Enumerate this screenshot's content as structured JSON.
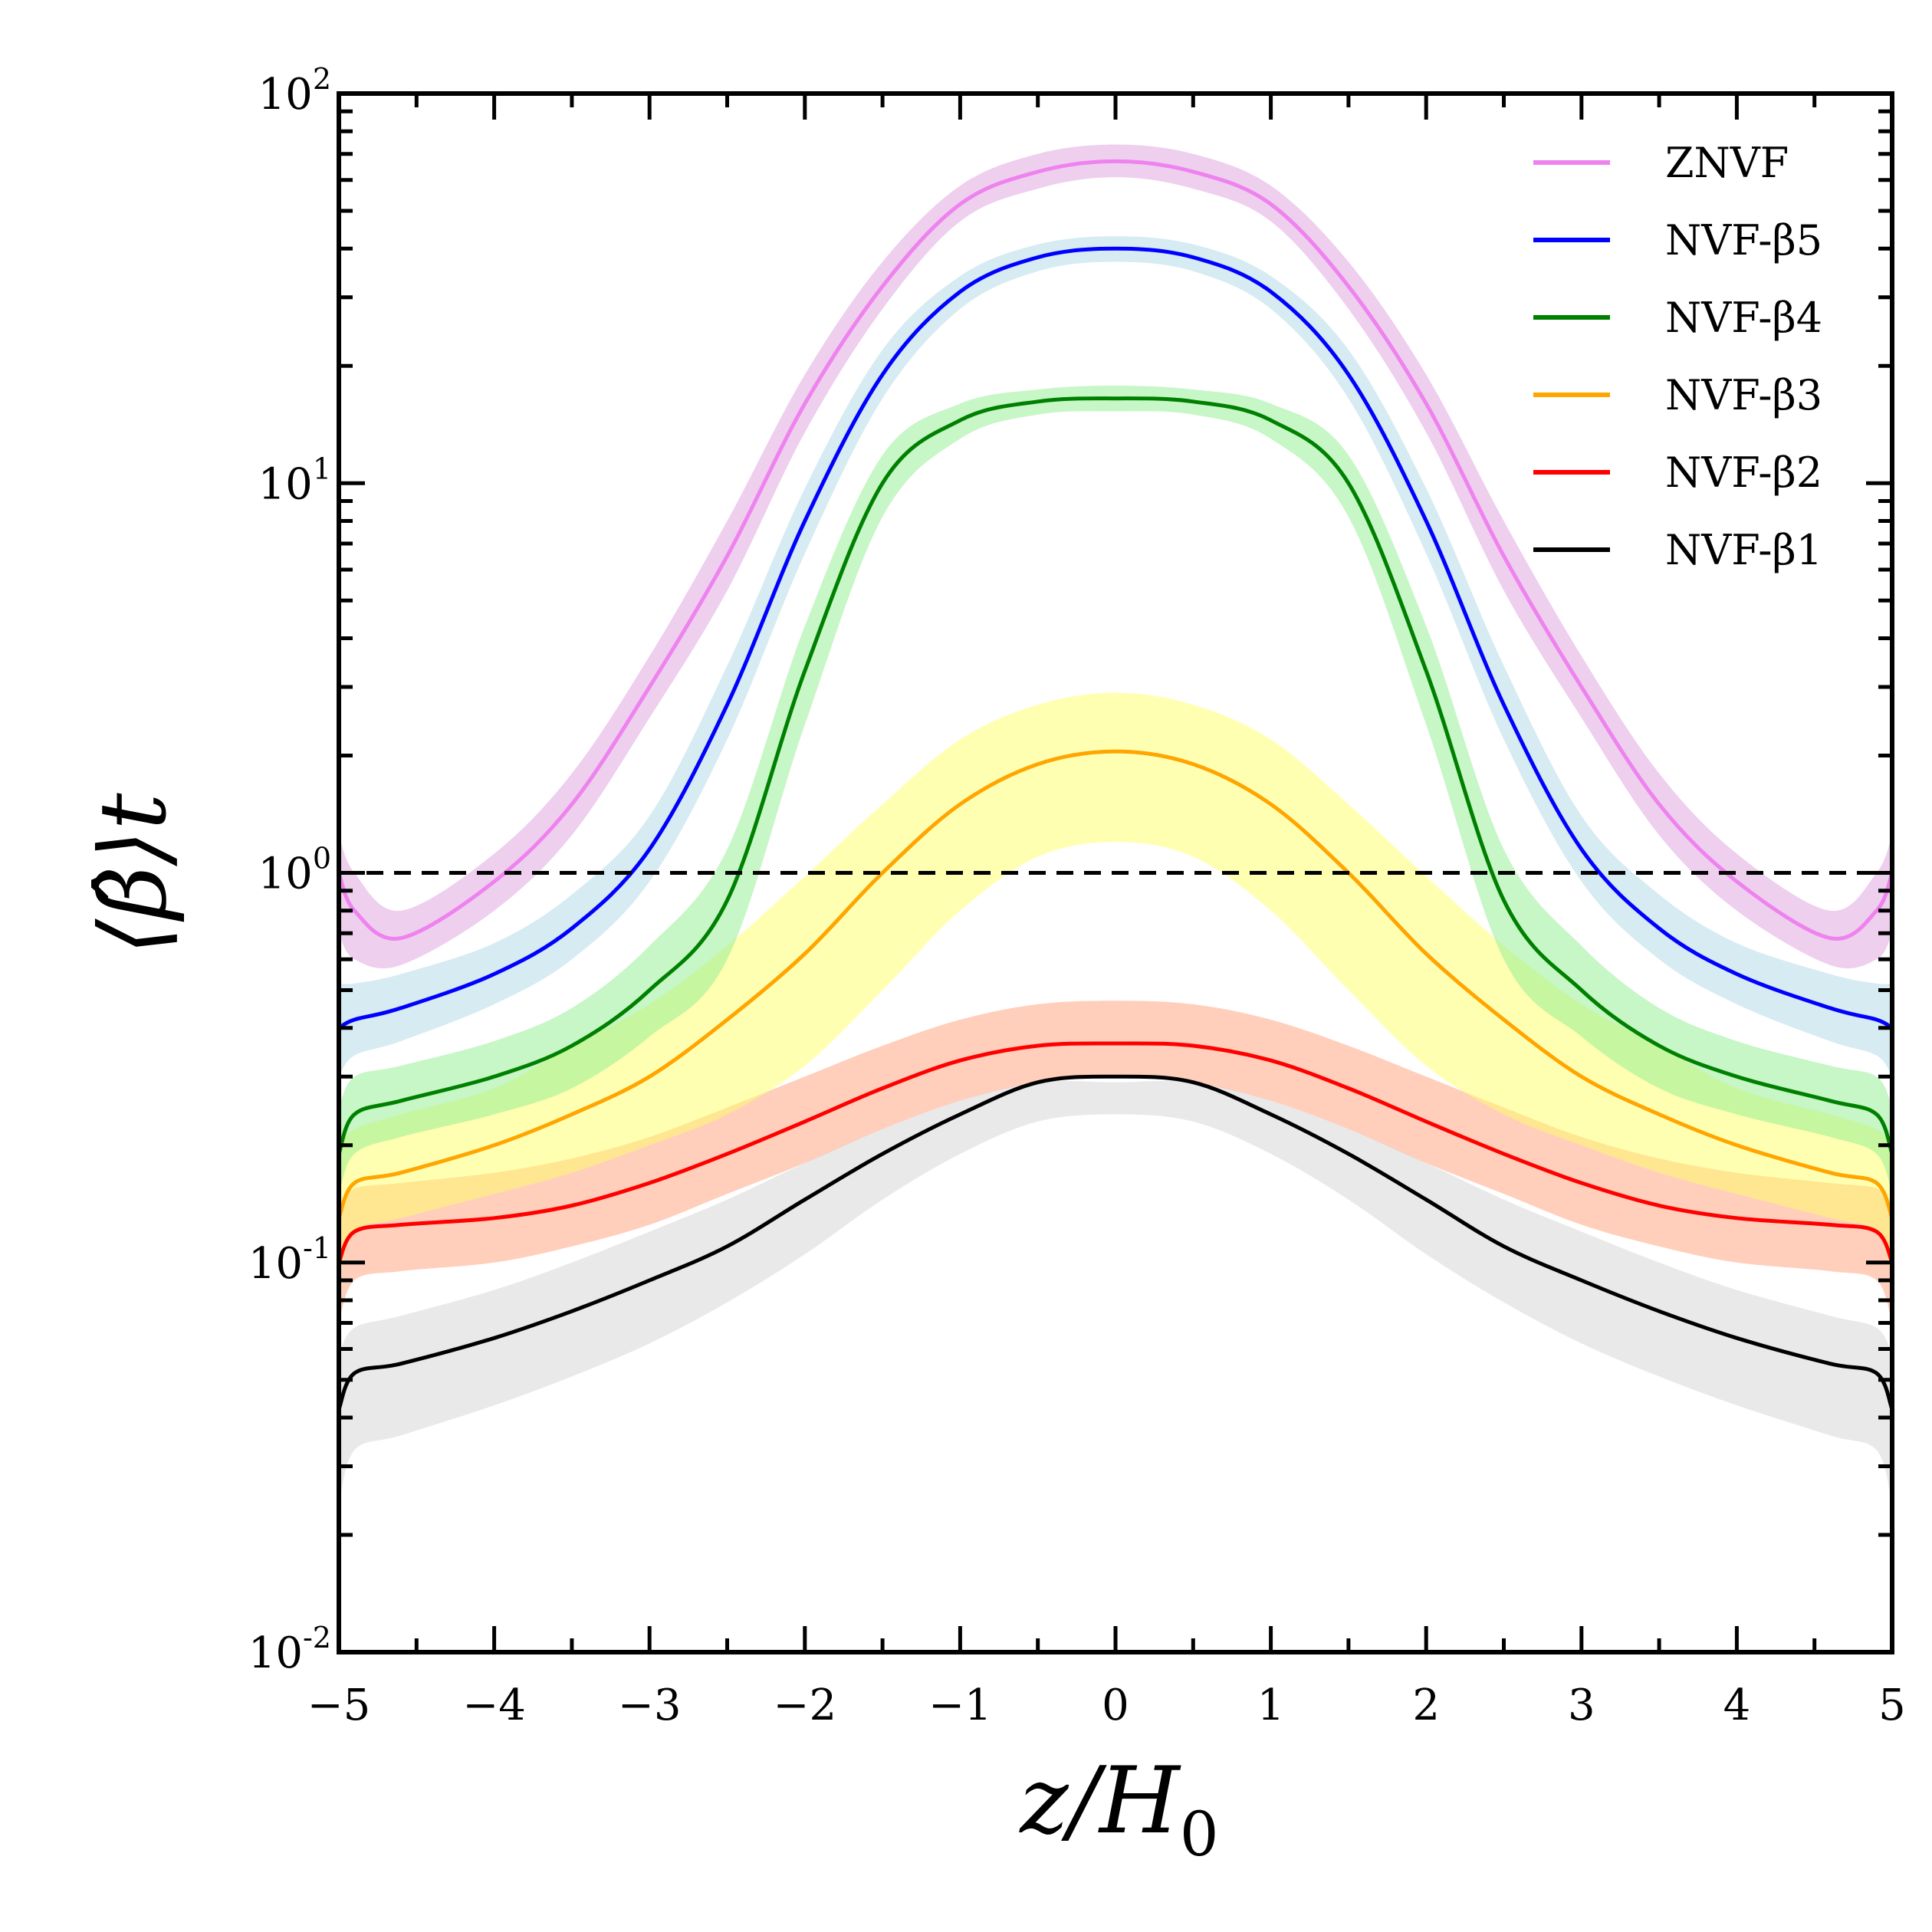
{
  "chart_data": {
    "type": "line",
    "title": "",
    "xlabel": "z/H0",
    "ylabel": "⟨β̂⟩t",
    "xlim": [
      -5,
      5
    ],
    "ylim": [
      0.01,
      100
    ],
    "yscale": "log",
    "x_ticks": [
      -5,
      -4,
      -3,
      -2,
      -1,
      0,
      1,
      2,
      3,
      4,
      5
    ],
    "x_tick_labels": [
      "−5",
      "−4",
      "−3",
      "−2",
      "−1",
      "0",
      "1",
      "2",
      "3",
      "4",
      "5"
    ],
    "y_ticks": [
      0.01,
      0.1,
      1,
      10,
      100
    ],
    "y_tick_labels": [
      {
        "base": "10",
        "exp": "-2"
      },
      {
        "base": "10",
        "exp": "-1"
      },
      {
        "base": "10",
        "exp": "0"
      },
      {
        "base": "10",
        "exp": "1"
      },
      {
        "base": "10",
        "exp": "2"
      }
    ],
    "reference_line": {
      "y": 1,
      "style": "dashed",
      "color": "#000000"
    },
    "legend_position": "top-right",
    "x": [
      -5,
      -4.9,
      -4.6,
      -4,
      -3.5,
      -3,
      -2.5,
      -2,
      -1.5,
      -1,
      -0.5,
      0,
      0.5,
      1,
      1.5,
      2,
      2.5,
      3,
      3.5,
      4,
      4.6,
      4.9,
      5
    ],
    "series": [
      {
        "name": "ZNVF",
        "color": "#ee82ee",
        "band_color": "#dda0dd",
        "values": [
          1.0,
          0.8,
          0.68,
          0.95,
          1.5,
          3.0,
          6.5,
          16,
          32,
          52,
          63,
          67,
          63,
          52,
          32,
          16,
          6.5,
          3.0,
          1.5,
          0.95,
          0.68,
          0.8,
          1.0
        ],
        "lower": [
          0.7,
          0.6,
          0.58,
          0.8,
          1.25,
          2.5,
          5.3,
          13.5,
          28,
          47,
          57,
          61,
          57,
          47,
          28,
          13.5,
          5.3,
          2.5,
          1.25,
          0.8,
          0.58,
          0.6,
          0.7
        ],
        "upper": [
          1.25,
          1.0,
          0.8,
          1.12,
          1.8,
          3.6,
          8.0,
          19,
          37,
          58,
          70,
          74,
          70,
          58,
          37,
          19,
          8.0,
          3.6,
          1.8,
          1.12,
          0.8,
          1.0,
          1.25
        ]
      },
      {
        "name": "NVF-β5",
        "color": "#0000ff",
        "band_color": "#add8e6",
        "values": [
          0.4,
          0.42,
          0.45,
          0.55,
          0.72,
          1.15,
          2.7,
          8,
          19,
          31,
          38,
          40,
          38,
          31,
          19,
          8,
          2.7,
          1.15,
          0.72,
          0.55,
          0.45,
          0.42,
          0.4
        ],
        "lower": [
          0.3,
          0.34,
          0.37,
          0.46,
          0.6,
          0.95,
          2.2,
          6.6,
          16.5,
          28,
          35,
          37,
          35,
          28,
          16.5,
          6.6,
          2.2,
          0.95,
          0.6,
          0.46,
          0.37,
          0.34,
          0.3
        ],
        "upper": [
          0.52,
          0.52,
          0.55,
          0.66,
          0.88,
          1.4,
          3.4,
          9.7,
          22,
          34,
          41,
          43,
          41,
          34,
          22,
          9.7,
          3.4,
          1.4,
          0.88,
          0.66,
          0.55,
          0.52,
          0.52
        ]
      },
      {
        "name": "NVF-β4",
        "color": "#008000",
        "band_color": "#90ee90",
        "values": [
          0.19,
          0.24,
          0.26,
          0.3,
          0.36,
          0.5,
          0.85,
          3.3,
          10,
          14.5,
          16.2,
          16.5,
          16.2,
          14.5,
          10,
          3.3,
          0.85,
          0.5,
          0.36,
          0.3,
          0.26,
          0.24,
          0.19
        ],
        "lower": [
          0.15,
          0.19,
          0.21,
          0.24,
          0.28,
          0.38,
          0.6,
          2.4,
          8.2,
          13,
          15,
          15.3,
          15,
          13,
          8.2,
          2.4,
          0.6,
          0.38,
          0.28,
          0.24,
          0.21,
          0.19,
          0.15
        ],
        "upper": [
          0.25,
          0.3,
          0.32,
          0.37,
          0.45,
          0.65,
          1.15,
          4.3,
          11.8,
          16,
          17.4,
          17.8,
          17.4,
          16,
          11.8,
          4.3,
          1.15,
          0.65,
          0.45,
          0.37,
          0.32,
          0.3,
          0.25
        ]
      },
      {
        "name": "NVF-β3",
        "color": "#ffa500",
        "band_color": "#ffff66",
        "values": [
          0.13,
          0.16,
          0.17,
          0.2,
          0.24,
          0.3,
          0.42,
          0.62,
          1.0,
          1.5,
          1.9,
          2.05,
          1.9,
          1.5,
          1.0,
          0.62,
          0.42,
          0.3,
          0.24,
          0.2,
          0.17,
          0.16,
          0.13
        ],
        "lower": [
          0.09,
          0.12,
          0.13,
          0.15,
          0.17,
          0.2,
          0.24,
          0.32,
          0.5,
          0.8,
          1.1,
          1.2,
          1.1,
          0.8,
          0.5,
          0.32,
          0.24,
          0.2,
          0.17,
          0.15,
          0.13,
          0.12,
          0.09
        ],
        "upper": [
          0.2,
          0.22,
          0.24,
          0.28,
          0.36,
          0.46,
          0.65,
          0.98,
          1.5,
          2.2,
          2.7,
          2.9,
          2.7,
          2.2,
          1.5,
          0.98,
          0.65,
          0.46,
          0.36,
          0.28,
          0.24,
          0.22,
          0.2
        ]
      },
      {
        "name": "NVF-β2",
        "color": "#ff0000",
        "band_color": "#ffa07a",
        "values": [
          0.1,
          0.12,
          0.125,
          0.13,
          0.14,
          0.16,
          0.19,
          0.23,
          0.28,
          0.33,
          0.36,
          0.365,
          0.36,
          0.33,
          0.28,
          0.23,
          0.19,
          0.16,
          0.14,
          0.13,
          0.125,
          0.12,
          0.1
        ],
        "lower": [
          0.07,
          0.09,
          0.095,
          0.1,
          0.11,
          0.125,
          0.15,
          0.18,
          0.22,
          0.26,
          0.29,
          0.3,
          0.29,
          0.26,
          0.22,
          0.18,
          0.15,
          0.125,
          0.11,
          0.1,
          0.095,
          0.09,
          0.07
        ],
        "upper": [
          0.14,
          0.155,
          0.16,
          0.17,
          0.185,
          0.21,
          0.25,
          0.3,
          0.36,
          0.42,
          0.46,
          0.47,
          0.46,
          0.42,
          0.36,
          0.3,
          0.25,
          0.21,
          0.185,
          0.17,
          0.16,
          0.155,
          0.14
        ]
      },
      {
        "name": "NVF-β1",
        "color": "#000000",
        "band_color": "#d3d3d3",
        "values": [
          0.042,
          0.052,
          0.055,
          0.064,
          0.075,
          0.09,
          0.11,
          0.145,
          0.19,
          0.24,
          0.29,
          0.3,
          0.29,
          0.24,
          0.19,
          0.145,
          0.11,
          0.09,
          0.075,
          0.064,
          0.055,
          0.052,
          0.042
        ],
        "lower": [
          0.024,
          0.033,
          0.036,
          0.043,
          0.051,
          0.062,
          0.079,
          0.105,
          0.145,
          0.19,
          0.23,
          0.24,
          0.23,
          0.19,
          0.145,
          0.105,
          0.079,
          0.062,
          0.051,
          0.043,
          0.036,
          0.033,
          0.024
        ],
        "upper": [
          0.058,
          0.068,
          0.073,
          0.085,
          0.1,
          0.12,
          0.145,
          0.18,
          0.22,
          0.26,
          0.29,
          0.29,
          0.29,
          0.26,
          0.22,
          0.18,
          0.145,
          0.12,
          0.1,
          0.085,
          0.073,
          0.068,
          0.058
        ]
      }
    ]
  }
}
